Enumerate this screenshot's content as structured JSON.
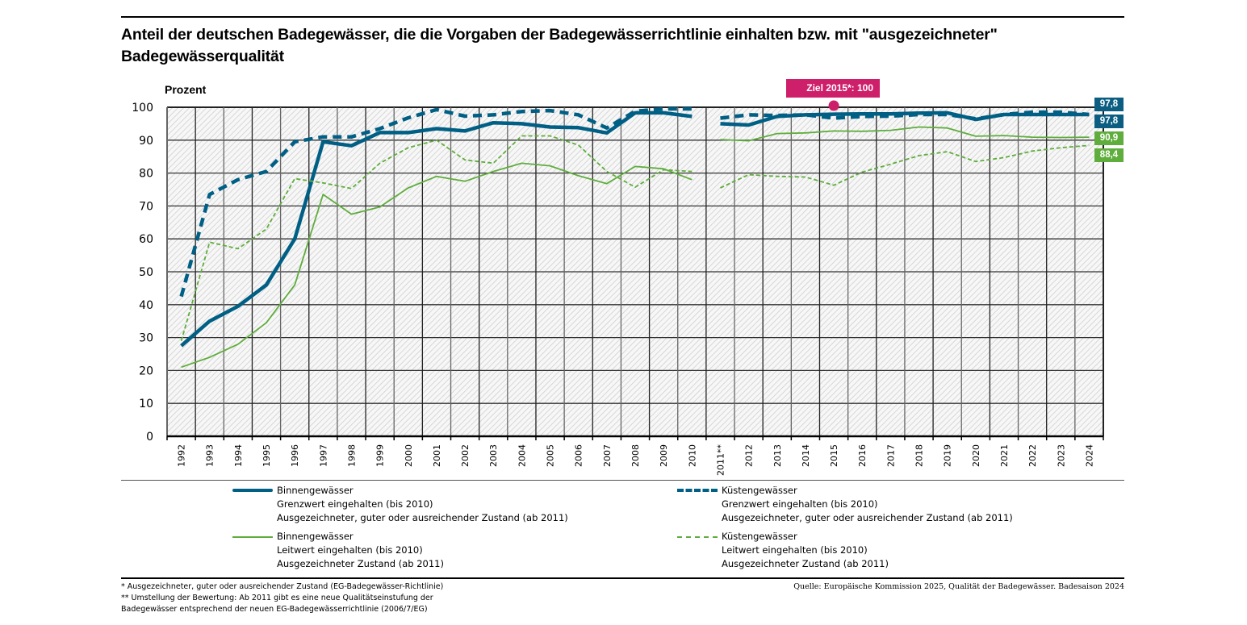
{
  "title": "Anteil der deutschen Badegewässer, die die Vorgaben der Badegewässerrichtlinie einhalten bzw. mit \"ausgezeichneter\" Badegewässerqualität",
  "colors": {
    "blue": "#005f85",
    "green": "#5fad3c",
    "target": "#ce1f6a"
  },
  "chart_data": {
    "type": "line",
    "title": "Anteil der deutschen Badegewässer, die die Vorgaben der Badegewässerrichtlinie einhalten bzw. mit \"ausgezeichneter\" Badegewässerqualität",
    "ylabel": "Prozent",
    "xlabel": "",
    "ylim": [
      0,
      100
    ],
    "yticks": [
      "0",
      "10",
      "20",
      "30",
      "40",
      "50",
      "60",
      "70",
      "80",
      "90",
      "100"
    ],
    "grid": true,
    "categories": [
      "1992",
      "1993",
      "1994",
      "1995",
      "1996",
      "1997",
      "1998",
      "1999",
      "2000",
      "2001",
      "2002",
      "2003",
      "2004",
      "2005",
      "2006",
      "2007",
      "2008",
      "2009",
      "2010",
      "2011**",
      "2012",
      "2013",
      "2014",
      "2015",
      "2016",
      "2017",
      "2018",
      "2019",
      "2020",
      "2021",
      "2022",
      "2023",
      "2024"
    ],
    "break_after": "2010",
    "series": [
      {
        "name": "Binnengewässer – Grenzwert eingehalten (bis 2010) / Ausgezeichneter, guter oder ausreichender Zustand (ab 2011)",
        "style": "solid-thick",
        "color": "#005f85",
        "values": [
          27.5,
          35,
          39.5,
          46,
          60,
          89.5,
          88.3,
          92.3,
          92.3,
          93.5,
          92.8,
          95.3,
          95,
          94,
          93.8,
          92.2,
          98.3,
          98.3,
          97.2,
          95,
          94.6,
          97.2,
          97.7,
          97.9,
          98,
          98,
          98.2,
          98.3,
          96.3,
          97.8,
          97.8,
          97.8,
          97.8
        ]
      },
      {
        "name": "Küstengewässer – Grenzwert eingehalten (bis 2010) / Ausgezeichneter, guter oder ausreichender Zustand (ab 2011)",
        "style": "dashed-thick",
        "color": "#005f85",
        "values": [
          42.5,
          73.5,
          78,
          80.5,
          89.5,
          91,
          91,
          93.5,
          96.8,
          99.3,
          97.3,
          97.7,
          98.7,
          99,
          97.7,
          93.7,
          98.8,
          99.5,
          99.5,
          96.7,
          97.7,
          97.5,
          97.7,
          96.7,
          97.2,
          97.3,
          97.8,
          97.8,
          96.5,
          97.8,
          98.5,
          98.5,
          97.8
        ]
      },
      {
        "name": "Binnengewässer – Leitwert eingehalten (bis 2010) / Ausgezeichneter Zustand (ab 2011)",
        "style": "solid-thin",
        "color": "#5fad3c",
        "values": [
          21,
          24,
          28,
          34.5,
          46,
          73.5,
          67.5,
          69.7,
          75.5,
          79,
          77.5,
          80.5,
          83,
          82.2,
          79.2,
          76.8,
          82,
          81.3,
          78,
          90.2,
          89.8,
          92,
          92.2,
          92.8,
          92.7,
          93,
          94,
          93.7,
          91.2,
          91.4,
          90.9,
          90.8,
          90.9
        ]
      },
      {
        "name": "Küstengewässer – Leitwert eingehalten (bis 2010) / Ausgezeichneter Zustand (ab 2011)",
        "style": "dashed-thin",
        "color": "#5fad3c",
        "values": [
          29,
          59,
          57,
          63,
          78.3,
          77,
          75.3,
          83,
          87.7,
          90,
          84,
          83,
          91.3,
          91.3,
          88.5,
          80.5,
          75.7,
          81,
          80.5,
          75.5,
          79.5,
          79,
          78.8,
          76.3,
          80.3,
          82.7,
          85.3,
          86.5,
          83.5,
          84.7,
          86.7,
          87.7,
          88.4
        ]
      }
    ],
    "end_labels": [
      "97,8",
      "97,8",
      "90,9",
      "88,4"
    ],
    "annotation": {
      "text": "Ziel 2015*: 100",
      "category": "2015",
      "value": 100
    },
    "legend_position": "bottom"
  },
  "legend": [
    {
      "line1": "Binnengewässer",
      "line2": "Grenzwert eingehalten (bis 2010)",
      "line3": "Ausgezeichneter, guter oder ausreichender Zustand (ab 2011)"
    },
    {
      "line1": "Küstengewässer",
      "line2": "Grenzwert eingehalten (bis 2010)",
      "line3": "Ausgezeichneter, guter oder ausreichender Zustand (ab 2011)"
    },
    {
      "line1": "Binnengewässer",
      "line2": "Leitwert eingehalten (bis 2010)",
      "line3": "Ausgezeichneter Zustand (ab 2011)"
    },
    {
      "line1": "Küstengewässer",
      "line2": "Leitwert eingehalten (bis 2010)",
      "line3": "Ausgezeichneter Zustand (ab 2011)"
    }
  ],
  "footnotes": {
    "note1": "* Ausgezeichneter, guter oder ausreichender Zustand (EG-Badegewässer-Richtlinie)",
    "note2": "** Umstellung der Bewertung: Ab 2011 gibt es eine neue Qualitätseinstufung der",
    "note3": "Badegewässer entsprechend der neuen EG-Badegewässerrichtlinie (2006/7/EG)"
  },
  "source": "Quelle: Europäische Kommission 2025, Qualität der Badegewässer. Badesaison 2024"
}
